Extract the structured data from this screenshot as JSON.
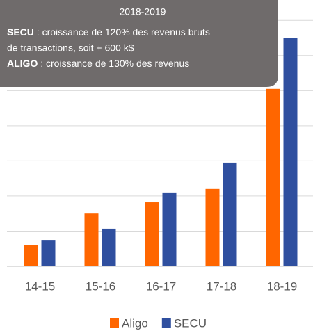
{
  "chart_data": {
    "type": "bar",
    "categories": [
      "14-15",
      "15-16",
      "16-17",
      "17-18",
      "18-19"
    ],
    "series": [
      {
        "name": "Aligo",
        "color": "#ff6600",
        "values": [
          0.61,
          1.5,
          1.82,
          2.2,
          5.05
        ]
      },
      {
        "name": "SECU",
        "color": "#2f4f9f",
        "values": [
          0.75,
          1.07,
          2.1,
          2.95,
          6.5
        ]
      }
    ],
    "ylim": [
      0,
      7.5
    ],
    "yticks": [
      0,
      1,
      2,
      3,
      4,
      5,
      6,
      7
    ],
    "grid": true,
    "legend": "bottom",
    "annotation": {
      "heading": "2018-2019",
      "lines": [
        [
          "SECU",
          " : croissance de 120% des revenus bruts"
        ],
        [
          "",
          "de transactions, soit + 600 k$"
        ],
        [
          "ALIGO",
          " : croissance de 130% des revenus"
        ]
      ]
    }
  }
}
